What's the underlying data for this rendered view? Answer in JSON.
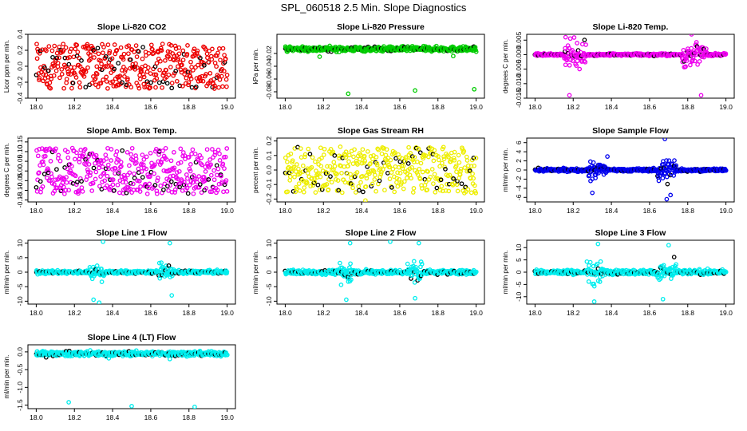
{
  "figure": {
    "title": "SPL_060518  2.5 Min. Slope Diagnostics"
  },
  "colors": {
    "highlight": "#000000",
    "axis": "#000000",
    "background": "#ffffff"
  },
  "chart_data": [
    {
      "type": "scatter",
      "title": "Slope Li-820 CO2",
      "ylabel": "Licor ppm per min.",
      "xlim": [
        18.0,
        19.0
      ],
      "ylim": [
        -0.4,
        0.4
      ],
      "yticks": [
        -0.4,
        -0.2,
        0.0,
        0.2,
        0.4
      ],
      "ytick_labels": [
        "-0.4",
        "-0.2",
        "0.0",
        "0.2",
        "0.4"
      ],
      "color": "#ee0000",
      "pattern": "uniform",
      "center": 0.0,
      "spread": 0.28,
      "spikes": []
    },
    {
      "type": "scatter",
      "title": "Slope Li-820 Pressure",
      "ylabel": "kPa per min.",
      "xlim": [
        18.0,
        19.0
      ],
      "ylim": [
        -0.09,
        0.01
      ],
      "yticks": [
        -0.08,
        -0.06,
        -0.04,
        -0.02
      ],
      "ytick_labels": [
        "-0.08",
        "-0.06",
        "-0.04",
        "-0.02"
      ],
      "color": "#00cc00",
      "pattern": "band",
      "center": -0.013,
      "spread": 0.004,
      "spikes": [
        [
          18.33,
          -0.083
        ],
        [
          18.68,
          -0.078
        ],
        [
          18.99,
          -0.076
        ],
        [
          18.18,
          -0.025
        ],
        [
          18.88,
          -0.024
        ]
      ]
    },
    {
      "type": "scatter",
      "title": "Slope Li-820 Temp.",
      "ylabel": "degrees C per min.",
      "xlim": [
        18.0,
        19.0
      ],
      "ylim": [
        -0.015,
        0.007
      ],
      "yticks": [
        -0.015,
        -0.01,
        -0.005,
        0.0,
        0.005
      ],
      "ytick_labels": [
        "-0.015",
        "-0.010",
        "-0.005",
        "0.000",
        "0.005"
      ],
      "color": "#ee00ee",
      "pattern": "bursts",
      "center": 0.0,
      "spread": 0.0004,
      "bursts": [
        [
          18.15,
          18.27,
          0.006
        ],
        [
          18.77,
          18.9,
          0.006
        ]
      ],
      "spikes": [
        [
          18.18,
          -0.014
        ],
        [
          18.87,
          -0.014
        ],
        [
          18.16,
          0.006
        ],
        [
          18.82,
          0.007
        ]
      ]
    },
    {
      "type": "scatter",
      "title": "Slope Amb. Box Temp.",
      "ylabel": "degrees C per min.",
      "xlim": [
        18.0,
        19.0
      ],
      "ylim": [
        -0.16,
        0.17
      ],
      "yticks": [
        -0.15,
        -0.1,
        -0.05,
        0.0,
        0.05,
        0.1,
        0.15
      ],
      "ytick_labels": [
        "-0.15",
        "-0.10",
        "-0.05",
        "0.00",
        "0.05",
        "0.10",
        "0.15"
      ],
      "color": "#ee00ee",
      "pattern": "uniform",
      "center": 0.0,
      "spread": 0.12,
      "spikes": []
    },
    {
      "type": "scatter",
      "title": "Slope Gas Stream RH",
      "ylabel": "percent per min.",
      "xlim": [
        18.0,
        19.0
      ],
      "ylim": [
        -0.22,
        0.22
      ],
      "yticks": [
        -0.2,
        -0.1,
        0.0,
        0.1,
        0.2
      ],
      "ytick_labels": [
        "-0.2",
        "-0.1",
        "0.0",
        "0.1",
        "0.2"
      ],
      "color": "#eeee00",
      "pattern": "uniform",
      "center": 0.0,
      "spread": 0.16,
      "spikes": [
        [
          18.42,
          -0.21
        ]
      ]
    },
    {
      "type": "scatter",
      "title": "Slope Sample Flow",
      "ylabel": "ml/min per min.",
      "xlim": [
        18.0,
        19.0
      ],
      "ylim": [
        -7,
        7
      ],
      "yticks": [
        -6,
        -4,
        -2,
        0,
        2,
        4,
        6
      ],
      "ytick_labels": [
        "-6",
        "-4",
        "-2",
        "0",
        "2",
        "4",
        "6"
      ],
      "color": "#0000ee",
      "pattern": "bursts",
      "center": 0.0,
      "spread": 0.35,
      "bursts": [
        [
          18.28,
          18.38,
          3.0
        ],
        [
          18.64,
          18.74,
          4.0
        ]
      ],
      "spikes": [
        [
          18.68,
          6.8
        ],
        [
          18.69,
          -6.4
        ],
        [
          18.3,
          -5.0
        ],
        [
          18.71,
          -5.5
        ]
      ]
    },
    {
      "type": "scatter",
      "title": "Slope Line 1 Flow",
      "ylabel": "ml/min per min.",
      "xlim": [
        18.0,
        19.0
      ],
      "ylim": [
        -11,
        11
      ],
      "yticks": [
        -10,
        -5,
        0,
        5,
        10
      ],
      "ytick_labels": [
        "-10",
        "-5",
        "0",
        "5",
        "10"
      ],
      "color": "#00eeee",
      "pattern": "bursts",
      "center": 0.0,
      "spread": 0.6,
      "bursts": [
        [
          18.28,
          18.36,
          4.0
        ],
        [
          18.64,
          18.72,
          4.5
        ]
      ],
      "spikes": [
        [
          18.33,
          -10.5
        ],
        [
          18.35,
          10.5
        ],
        [
          18.7,
          10.0
        ],
        [
          18.71,
          -8.0
        ],
        [
          18.3,
          -9.5
        ]
      ]
    },
    {
      "type": "scatter",
      "title": "Slope Line 2 Flow",
      "ylabel": "ml/min per min.",
      "xlim": [
        18.0,
        19.0
      ],
      "ylim": [
        -11,
        11
      ],
      "yticks": [
        -10,
        -5,
        0,
        5,
        10
      ],
      "ytick_labels": [
        "-10",
        "-5",
        "0",
        "5",
        "10"
      ],
      "color": "#00eeee",
      "pattern": "bursts",
      "center": 0.0,
      "spread": 0.8,
      "bursts": [
        [
          18.28,
          18.36,
          5.0
        ],
        [
          18.64,
          18.72,
          5.5
        ]
      ],
      "spikes": [
        [
          18.32,
          -9.5
        ],
        [
          18.34,
          10.0
        ],
        [
          18.7,
          10.0
        ],
        [
          18.68,
          -9.0
        ],
        [
          18.55,
          10.5
        ]
      ]
    },
    {
      "type": "scatter",
      "title": "Slope Line 3 Flow",
      "ylabel": "ml/min per min.",
      "xlim": [
        18.0,
        19.0
      ],
      "ylim": [
        -13,
        13
      ],
      "yticks": [
        -10,
        -5,
        0,
        5,
        10
      ],
      "ytick_labels": [
        "-10",
        "-5",
        "0",
        "5",
        "10"
      ],
      "color": "#00eeee",
      "pattern": "bursts",
      "center": 0.0,
      "spread": 1.0,
      "bursts": [
        [
          18.27,
          18.36,
          6.0
        ],
        [
          18.64,
          18.74,
          6.0
        ]
      ],
      "spikes": [
        [
          18.31,
          -12.0
        ],
        [
          18.33,
          11.5
        ],
        [
          18.67,
          -11.0
        ],
        [
          18.7,
          11.0
        ]
      ]
    },
    {
      "type": "scatter",
      "title": "Slope Line 4 (LT) Flow",
      "ylabel": "ml/min per min.",
      "xlim": [
        18.0,
        19.0
      ],
      "ylim": [
        -1.6,
        0.2
      ],
      "yticks": [
        -1.5,
        -1.0,
        -0.5,
        0.0
      ],
      "ytick_labels": [
        "-1.5",
        "-1.0",
        "-0.5",
        "0.0"
      ],
      "color": "#00eeee",
      "pattern": "band",
      "center": -0.05,
      "spread": 0.07,
      "spikes": [
        [
          18.17,
          -1.42
        ],
        [
          18.5,
          -1.53
        ],
        [
          18.83,
          -1.55
        ],
        [
          18.7,
          -0.2
        ],
        [
          18.38,
          -0.18
        ]
      ]
    }
  ],
  "xticks": [
    18.0,
    18.2,
    18.4,
    18.6,
    18.8,
    19.0
  ],
  "xtick_labels": [
    "18.0",
    "18.2",
    "18.4",
    "18.6",
    "18.8",
    "19.0"
  ]
}
